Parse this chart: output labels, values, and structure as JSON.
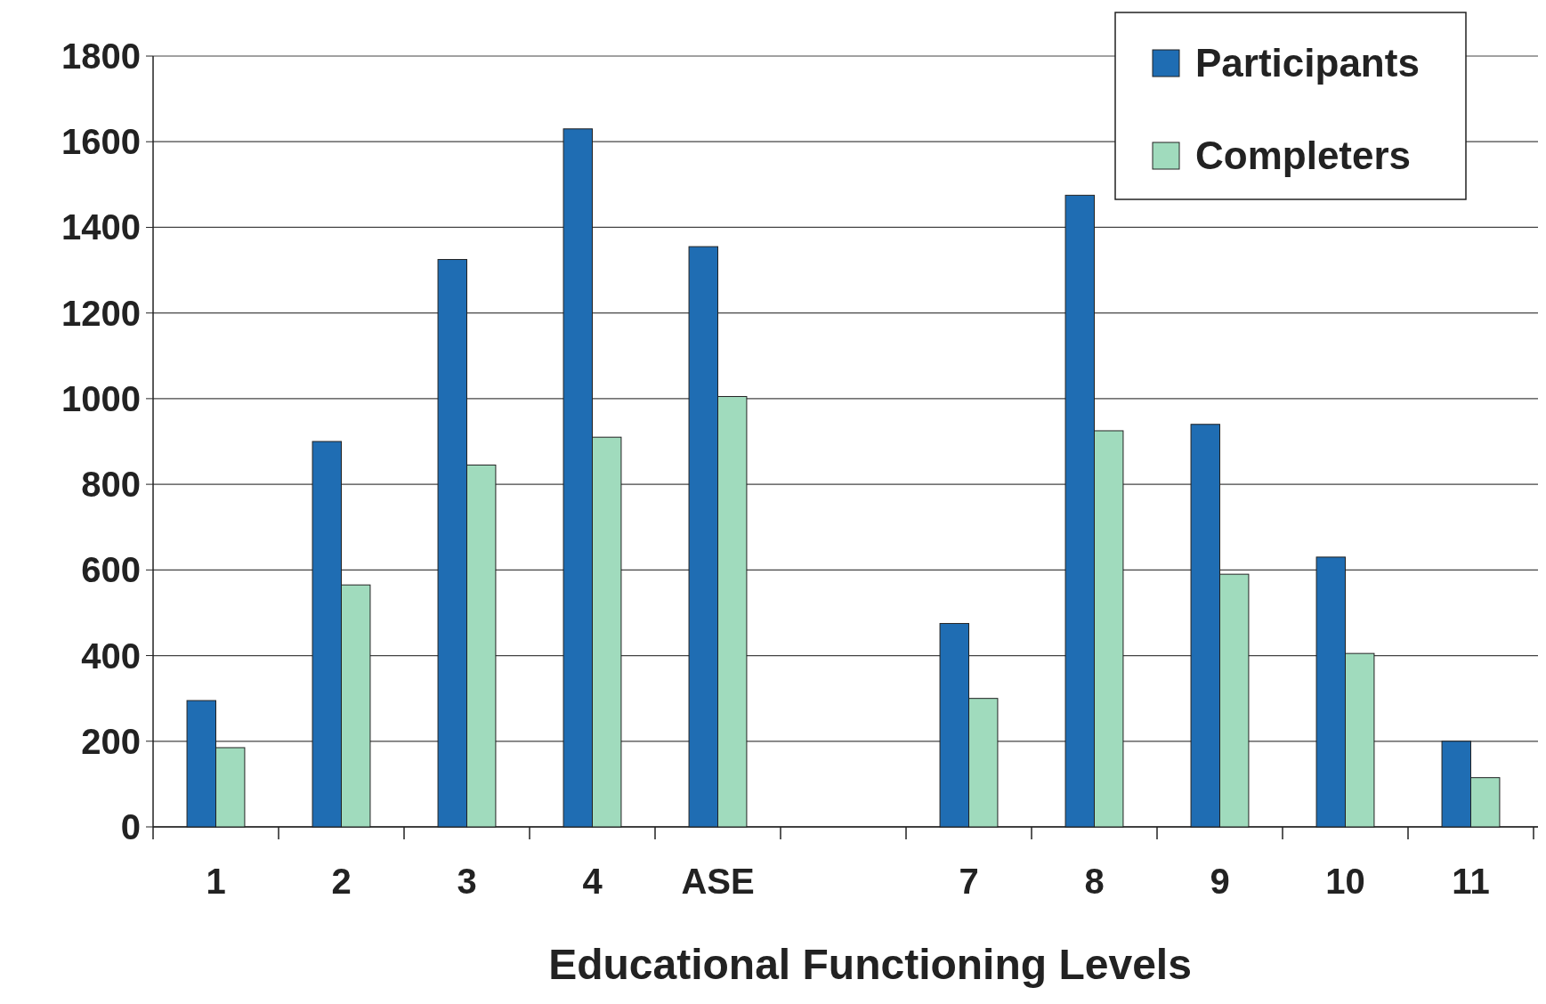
{
  "chart_data": {
    "type": "bar",
    "xlabel": "Educational Functioning Levels",
    "categories": [
      "1",
      "2",
      "3",
      "4",
      "ASE",
      null,
      "7",
      "8",
      "9",
      "10",
      "11"
    ],
    "series": [
      {
        "name": "Participants",
        "color": "#1f6db3",
        "values": [
          295,
          900,
          1325,
          1630,
          1355,
          null,
          475,
          1475,
          940,
          630,
          200
        ]
      },
      {
        "name": "Completers",
        "color": "#a0dbbd",
        "values": [
          185,
          565,
          845,
          910,
          1005,
          null,
          300,
          925,
          590,
          405,
          115
        ]
      }
    ],
    "ylim": [
      0,
      1800
    ],
    "yticks": [
      0,
      200,
      400,
      600,
      800,
      1000,
      1200,
      1400,
      1600,
      1800
    ],
    "grid": "y",
    "legend": "top right"
  }
}
